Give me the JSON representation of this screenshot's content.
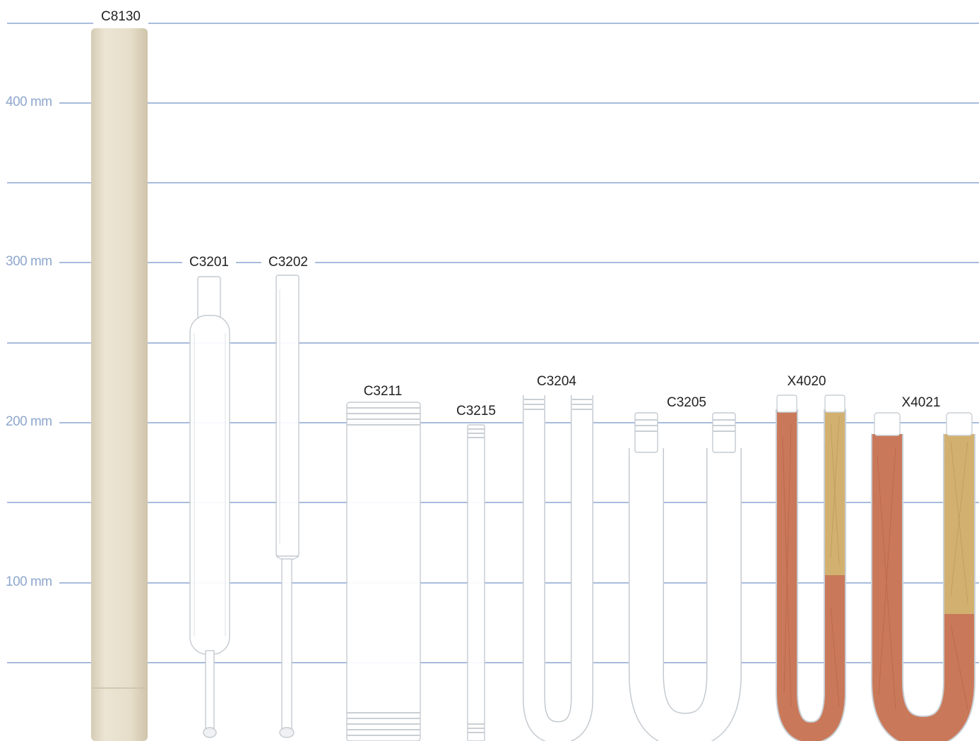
{
  "scale": {
    "unit_label_400": "400 mm",
    "unit_label_300": "300 mm",
    "unit_label_200": "200 mm",
    "unit_label_100": "100 mm"
  },
  "products": {
    "c8130": "C8130",
    "c3201": "C3201",
    "c3202": "C3202",
    "c3211": "C3211",
    "c3215": "C3215",
    "c3204": "C3204",
    "c3205": "C3205",
    "x4020": "X4020",
    "x4021": "X4021"
  },
  "colors": {
    "gridline": "#a8bcdc",
    "scale_text": "#8fa7cc",
    "ceramic": "#e7dfcc",
    "glass_edge": "#c9cfd4",
    "copper": "#c9795a",
    "brass": "#d2b170"
  }
}
